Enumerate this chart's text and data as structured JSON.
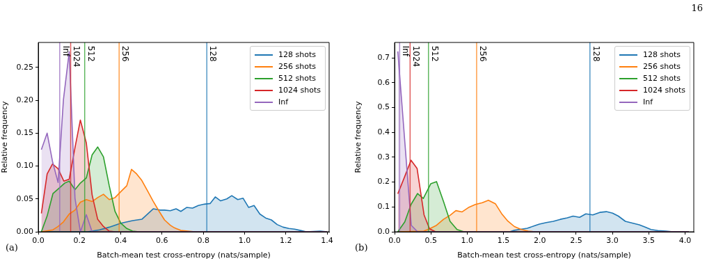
{
  "chart_data": [
    {
      "type": "area",
      "xlabel": "Batch-mean test cross-entropy (nats/sample)",
      "ylabel": "Relative frequency",
      "legend": "top right",
      "xlim": [
        0,
        1.41
      ],
      "ylim": [
        0,
        0.288
      ],
      "annotations": [
        "(a)",
        "16",
        {
          "text": "128",
          "x": 0.817,
          "y": 0.283
        },
        {
          "text": "256",
          "x": 0.392,
          "y": 0.283
        },
        {
          "text": "512",
          "x": 0.225,
          "y": 0.283
        },
        {
          "text": "1024",
          "x": 0.157,
          "y": 0.283
        },
        {
          "text": "Inf",
          "x": 0.104,
          "y": 0.283
        }
      ],
      "xticks": [
        {
          "value": 0,
          "label": "0.0"
        },
        {
          "value": 0.2,
          "label": "0.2"
        },
        {
          "value": 0.4,
          "label": "0.4"
        },
        {
          "value": 0.6,
          "label": "0.6"
        },
        {
          "value": 0.8,
          "label": "0.8"
        },
        {
          "value": 1.0,
          "label": "1.0"
        },
        {
          "value": 1.2,
          "label": "1.2"
        },
        {
          "value": 1.4,
          "label": "1.4"
        }
      ],
      "yticks": [
        {
          "value": 0,
          "label": "0.00"
        },
        {
          "value": 0.05,
          "label": "0.05"
        },
        {
          "value": 0.1,
          "label": "0.10"
        },
        {
          "value": 0.15,
          "label": "0.15"
        },
        {
          "value": 0.2,
          "label": "0.20"
        },
        {
          "value": 0.25,
          "label": "0.25"
        }
      ],
      "series": [
        {
          "name": "128 shots",
          "color": "#1f77b4",
          "x": [
            0.015,
            0.24,
            0.297,
            0.344,
            0.4,
            0.457,
            0.502,
            0.558,
            0.59,
            0.612,
            0.64,
            0.668,
            0.691,
            0.719,
            0.748,
            0.776,
            0.805,
            0.833,
            0.858,
            0.884,
            0.914,
            0.938,
            0.967,
            0.993,
            1.02,
            1.046,
            1.074,
            1.102,
            1.13,
            1.158,
            1.187,
            1.215,
            1.243,
            1.271,
            1.299,
            1.367,
            1.4
          ],
          "values": [
            0,
            0,
            0.003,
            0.007,
            0.013,
            0.017,
            0.019,
            0.035,
            0.033,
            0.033,
            0.032,
            0.035,
            0.031,
            0.037,
            0.036,
            0.04,
            0.042,
            0.043,
            0.053,
            0.047,
            0.05,
            0.055,
            0.049,
            0.051,
            0.037,
            0.04,
            0.027,
            0.021,
            0.018,
            0.011,
            0.007,
            0.005,
            0.004,
            0.002,
            0,
            0.001,
            0
          ]
        },
        {
          "name": "256 shots",
          "color": "#ff7f0e",
          "x": [
            0.015,
            0.071,
            0.096,
            0.122,
            0.15,
            0.178,
            0.204,
            0.233,
            0.261,
            0.288,
            0.316,
            0.344,
            0.372,
            0.4,
            0.429,
            0.452,
            0.477,
            0.502,
            0.53,
            0.556,
            0.584,
            0.612,
            0.64,
            0.66,
            0.691,
            0.759,
            1.4
          ],
          "values": [
            0,
            0.003,
            0.008,
            0.015,
            0.027,
            0.033,
            0.045,
            0.049,
            0.046,
            0.052,
            0.057,
            0.049,
            0.052,
            0.061,
            0.07,
            0.095,
            0.088,
            0.078,
            0.062,
            0.047,
            0.032,
            0.018,
            0.01,
            0.006,
            0.002,
            0,
            0
          ]
        },
        {
          "name": "512 shots",
          "color": "#2ca02c",
          "x": [
            0.015,
            0.043,
            0.071,
            0.1,
            0.128,
            0.15,
            0.178,
            0.204,
            0.233,
            0.261,
            0.288,
            0.316,
            0.344,
            0.372,
            0.4,
            0.429,
            0.457,
            0.488,
            1.4
          ],
          "values": [
            0,
            0.024,
            0.058,
            0.066,
            0.074,
            0.077,
            0.064,
            0.074,
            0.082,
            0.117,
            0.129,
            0.114,
            0.07,
            0.031,
            0.013,
            0.005,
            0.001,
            0,
            0
          ]
        },
        {
          "name": "1024 shots",
          "color": "#d62728",
          "x": [
            0.015,
            0.043,
            0.069,
            0.096,
            0.124,
            0.15,
            0.178,
            0.204,
            0.233,
            0.261,
            0.288,
            0.316,
            0.344,
            0.373,
            1.4
          ],
          "values": [
            0.028,
            0.088,
            0.103,
            0.096,
            0.077,
            0.08,
            0.128,
            0.17,
            0.135,
            0.056,
            0.019,
            0.008,
            0.001,
            0,
            0
          ]
        },
        {
          "name": "Inf",
          "color": "#9467bd",
          "x": [
            0.015,
            0.043,
            0.069,
            0.096,
            0.122,
            0.15,
            0.178,
            0.204,
            0.233,
            0.261,
            1.4
          ],
          "values": [
            0.125,
            0.15,
            0.107,
            0.075,
            0.201,
            0.274,
            0.051,
            0,
            0.026,
            0,
            0
          ]
        }
      ],
      "ref_lines": [
        {
          "axis": "x",
          "value": 0.817,
          "color": "#1f77b4"
        },
        {
          "axis": "x",
          "value": 0.392,
          "color": "#ff7f0e"
        },
        {
          "axis": "x",
          "value": 0.225,
          "color": "#2ca02c"
        },
        {
          "axis": "x",
          "value": 0.157,
          "color": "#d62728"
        },
        {
          "axis": "x",
          "value": 0.104,
          "color": "#9467bd"
        }
      ]
    },
    {
      "type": "area",
      "xlabel": "Batch-mean test cross-entropy (nats/sample)",
      "ylabel": "Relative frequency",
      "legend": "top right",
      "xlim": [
        0,
        4.12
      ],
      "ylim": [
        0,
        0.762
      ],
      "annotations": [
        "(b)",
        {
          "text": "128",
          "x": 2.69,
          "y": 0.749
        },
        {
          "text": "256",
          "x": 1.13,
          "y": 0.749
        },
        {
          "text": "512",
          "x": 0.467,
          "y": 0.749
        },
        {
          "text": "1024",
          "x": 0.214,
          "y": 0.749
        },
        {
          "text": "Inf",
          "x": 0.07,
          "y": 0.749
        }
      ],
      "xticks": [
        {
          "value": 0,
          "label": "0.0"
        },
        {
          "value": 0.5,
          "label": "0.5"
        },
        {
          "value": 1.0,
          "label": "1.0"
        },
        {
          "value": 1.5,
          "label": "1.5"
        },
        {
          "value": 2.0,
          "label": "2.0"
        },
        {
          "value": 2.5,
          "label": "2.5"
        },
        {
          "value": 3.0,
          "label": "3.0"
        },
        {
          "value": 3.5,
          "label": "3.5"
        },
        {
          "value": 4.0,
          "label": "4.0"
        }
      ],
      "yticks": [
        {
          "value": 0,
          "label": "0.0"
        },
        0.1,
        0.2,
        0.3,
        0.4,
        0.5,
        0.6,
        0.7
      ],
      "series": [
        {
          "name": "128 shots",
          "color": "#1f77b4",
          "x": [
            0.045,
            1.585,
            1.65,
            1.826,
            1.937,
            1.994,
            2.09,
            2.186,
            2.282,
            2.378,
            2.458,
            2.548,
            2.634,
            2.73,
            2.826,
            2.916,
            3.002,
            3.082,
            3.178,
            3.274,
            3.37,
            3.45,
            3.53,
            3.626,
            3.738,
            3.834,
            4.05
          ],
          "values": [
            0,
            0,
            0.006,
            0.014,
            0.025,
            0.031,
            0.037,
            0.042,
            0.05,
            0.056,
            0.063,
            0.058,
            0.072,
            0.068,
            0.078,
            0.081,
            0.075,
            0.063,
            0.042,
            0.035,
            0.028,
            0.019,
            0.009,
            0.005,
            0.003,
            0,
            0
          ]
        },
        {
          "name": "256 shots",
          "color": "#ff7f0e",
          "x": [
            0.045,
            0.403,
            0.482,
            0.578,
            0.674,
            0.764,
            0.844,
            0.93,
            1.026,
            1.113,
            1.208,
            1.292,
            1.388,
            1.474,
            1.56,
            1.65,
            1.745,
            1.841,
            1.937,
            4.05
          ],
          "values": [
            0,
            0.003,
            0.012,
            0.026,
            0.05,
            0.066,
            0.085,
            0.08,
            0.099,
            0.11,
            0.117,
            0.127,
            0.113,
            0.073,
            0.043,
            0.021,
            0.009,
            0.003,
            0,
            0
          ]
        },
        {
          "name": "512 shots",
          "color": "#2ca02c",
          "x": [
            0.045,
            0.141,
            0.227,
            0.317,
            0.396,
            0.498,
            0.578,
            0.674,
            0.764,
            0.86,
            0.956,
            4.05
          ],
          "values": [
            0,
            0.04,
            0.11,
            0.154,
            0.134,
            0.193,
            0.202,
            0.122,
            0.042,
            0.009,
            0,
            0
          ]
        },
        {
          "name": "1024 shots",
          "color": "#d62728",
          "x": [
            0.045,
            0.141,
            0.227,
            0.31,
            0.406,
            0.482,
            0.566,
            4.05
          ],
          "values": [
            0.153,
            0.223,
            0.288,
            0.255,
            0.068,
            0.012,
            0,
            0
          ]
        },
        {
          "name": "Inf",
          "color": "#9467bd",
          "x": [
            0.045,
            0.23,
            0.317,
            4.05
          ],
          "values": [
            0.726,
            0.026,
            0,
            0
          ]
        }
      ],
      "ref_lines": [
        {
          "axis": "x",
          "value": 2.69,
          "color": "#1f77b4"
        },
        {
          "axis": "x",
          "value": 1.13,
          "color": "#ff7f0e"
        },
        {
          "axis": "x",
          "value": 0.467,
          "color": "#2ca02c"
        },
        {
          "axis": "x",
          "value": 0.214,
          "color": "#d62728"
        },
        {
          "axis": "x",
          "value": 0.07,
          "color": "#9467bd"
        }
      ]
    }
  ]
}
